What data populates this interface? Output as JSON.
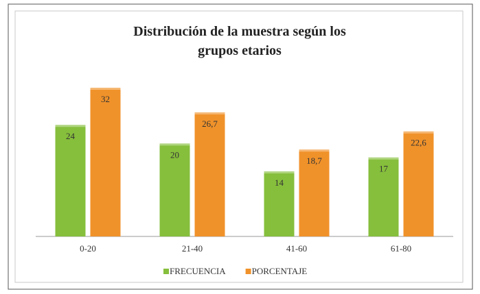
{
  "chart_data": {
    "type": "bar",
    "title": "Distribución de la muestra según los grupos etarios",
    "categories": [
      "0-20",
      "21-40",
      "41-60",
      "61-80"
    ],
    "series": [
      {
        "name": "FRECUENCIA",
        "color": "#86bf3c",
        "values": [
          24,
          20,
          14,
          17
        ]
      },
      {
        "name": "PORCENTAJE",
        "color": "#f0922a",
        "values": [
          32,
          26.7,
          18.7,
          22.6
        ],
        "value_labels": [
          "32",
          "26,7",
          "18,7",
          "22,6"
        ]
      }
    ],
    "legend": "bottom",
    "grid": false
  }
}
